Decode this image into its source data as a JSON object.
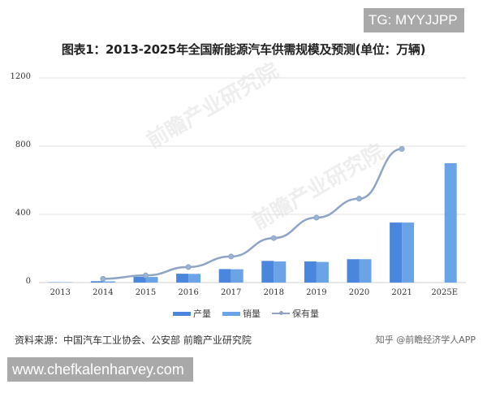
{
  "overlay": {
    "top_badge": "TG: MYYJJPP",
    "bottom_badge": "www.chefkalenharvey.com"
  },
  "watermark": {
    "text_1": "前瞻产业研究院",
    "text_2": "前瞻产业研究院"
  },
  "footer": {
    "source": "资料来源：中国汽车工业协会、公安部 前瞻产业研究院",
    "credit": "知乎 @前瞻经济学人APP"
  },
  "chart_data": {
    "type": "bar",
    "title": "图表1：2013-2025年全国新能源汽车供需规模及预测(单位：万辆)",
    "xlabel": "",
    "ylabel": "",
    "unit": "万辆",
    "ylim": [
      0,
      1200
    ],
    "yticks": [
      0,
      400,
      800,
      1200
    ],
    "grid": true,
    "legend_position": "bottom",
    "categories": [
      "2013",
      "2014",
      "2015",
      "2016",
      "2017",
      "2018",
      "2019",
      "2020",
      "2021",
      "2025E"
    ],
    "series": [
      {
        "name": "产量",
        "type": "bar",
        "color": "#4a86dc",
        "values": [
          2,
          8,
          34,
          52,
          79,
          127,
          124,
          137,
          352,
          null
        ]
      },
      {
        "name": "销量",
        "type": "bar",
        "color": "#6aa3e6",
        "values": [
          2,
          7,
          33,
          51,
          78,
          124,
          121,
          137,
          352,
          700
        ]
      },
      {
        "name": "保有量",
        "type": "line",
        "color": "#8ea4c4",
        "values": [
          null,
          22,
          42,
          91,
          153,
          261,
          381,
          492,
          784,
          null
        ]
      }
    ]
  }
}
